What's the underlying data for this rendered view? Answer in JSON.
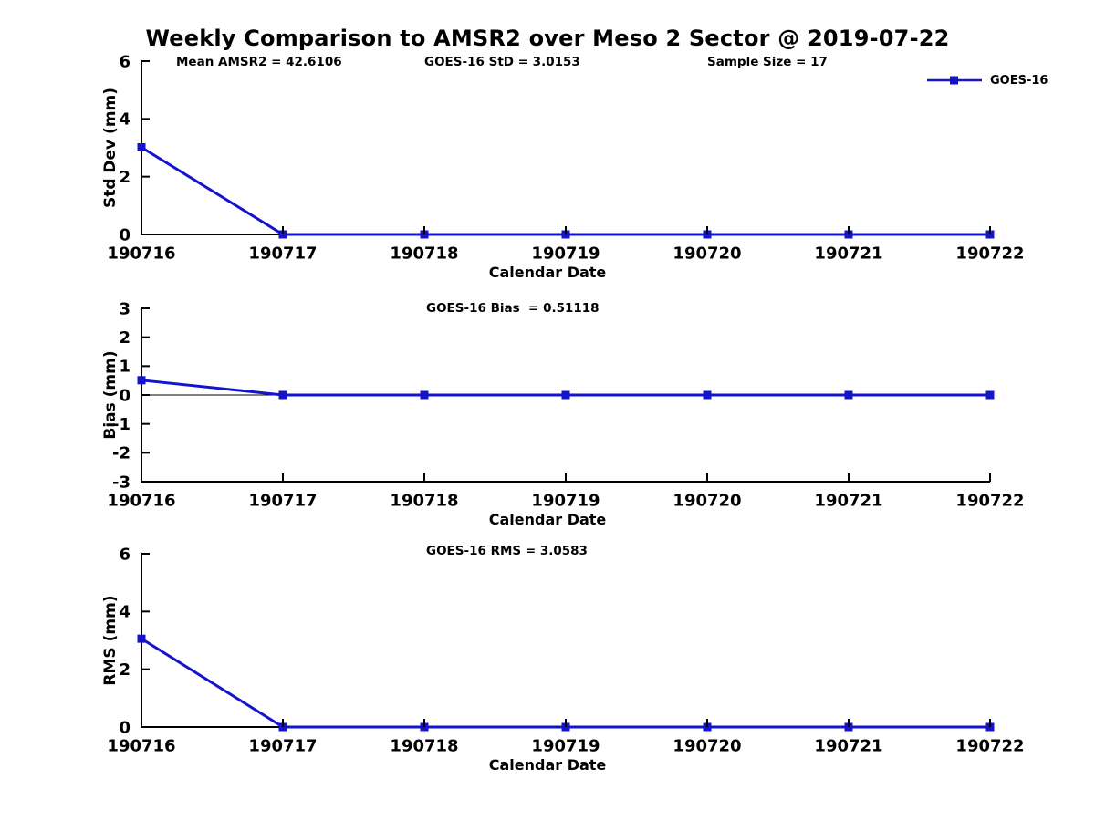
{
  "page": {
    "title": "Weekly Comparison to AMSR2 over Meso 2 Sector @ 2019-07-22",
    "background": "#ffffff"
  },
  "colors": {
    "series": "#1414cd",
    "axis": "#000000",
    "text": "#000000"
  },
  "legend": {
    "label": "GOES-16",
    "marker": "filled-square",
    "color": "#1414cd",
    "position": "top-right-outside"
  },
  "chart_data": [
    {
      "type": "line",
      "id": "std-dev",
      "annotations": [
        {
          "text": "Mean AMSR2 = 42.6106"
        },
        {
          "text": "GOES-16 StD = 3.0153"
        },
        {
          "text": "Sample Size = 17"
        }
      ],
      "ylabel": "Std Dev (mm)",
      "xlabel": "Calendar Date",
      "ylim": [
        0,
        6
      ],
      "yticks": [
        0,
        2,
        4,
        6
      ],
      "categories": [
        "190716",
        "190717",
        "190718",
        "190719",
        "190720",
        "190721",
        "190722"
      ],
      "series": [
        {
          "name": "GOES-16",
          "values": [
            3.0153,
            0,
            0,
            0,
            0,
            0,
            0
          ]
        }
      ],
      "zero_line": false,
      "grid": false
    },
    {
      "type": "line",
      "id": "bias",
      "annotations": [
        {
          "text": "GOES-16 Bias  = 0.51118"
        }
      ],
      "ylabel": "Bias (mm)",
      "xlabel": "Calendar Date",
      "ylim": [
        -3,
        3
      ],
      "yticks": [
        -3,
        -2,
        -1,
        0,
        1,
        2,
        3
      ],
      "categories": [
        "190716",
        "190717",
        "190718",
        "190719",
        "190720",
        "190721",
        "190722"
      ],
      "series": [
        {
          "name": "GOES-16",
          "values": [
            0.51118,
            0,
            0,
            0,
            0,
            0,
            0
          ]
        }
      ],
      "zero_line": true,
      "grid": false
    },
    {
      "type": "line",
      "id": "rms",
      "annotations": [
        {
          "text": "GOES-16 RMS = 3.0583"
        }
      ],
      "ylabel": "RMS (mm)",
      "xlabel": "Calendar Date",
      "ylim": [
        0,
        6
      ],
      "yticks": [
        0,
        2,
        4,
        6
      ],
      "categories": [
        "190716",
        "190717",
        "190718",
        "190719",
        "190720",
        "190721",
        "190722"
      ],
      "series": [
        {
          "name": "GOES-16",
          "values": [
            3.0583,
            0,
            0,
            0,
            0,
            0,
            0
          ]
        }
      ],
      "zero_line": false,
      "grid": false
    }
  ]
}
